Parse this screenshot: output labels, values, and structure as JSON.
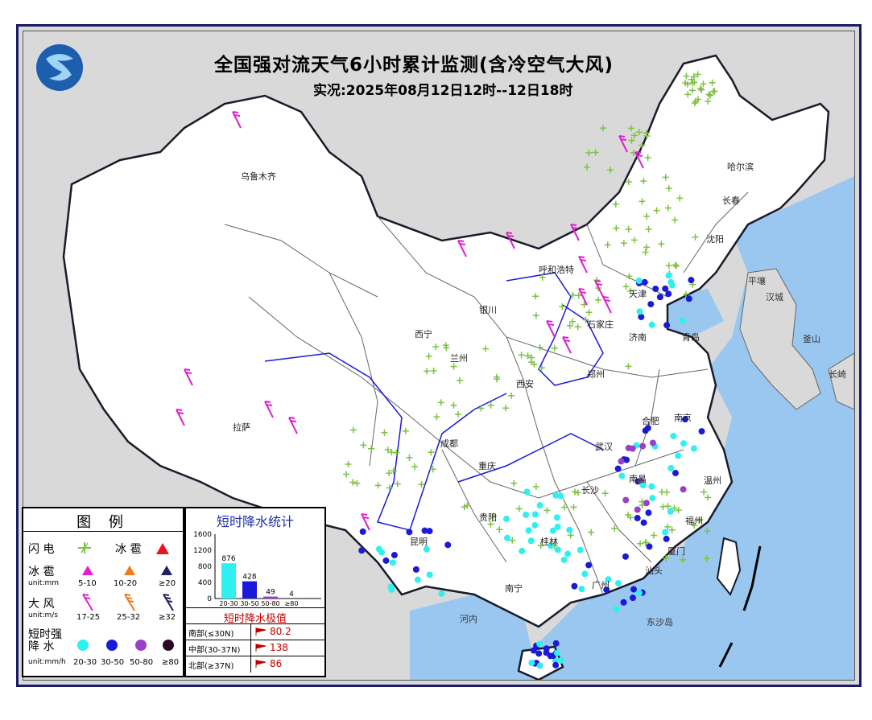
{
  "header": {
    "title": "全国强对流天气6小时累计监测(含冷空气大风)",
    "subtitle": "实况:2025年08月12日12时--12日18时"
  },
  "map_labels": {
    "cities": [
      {
        "name": "乌鲁木齐"
      },
      {
        "name": "哈尔滨"
      },
      {
        "name": "长春"
      },
      {
        "name": "沈阳"
      },
      {
        "name": "呼和浩特"
      },
      {
        "name": "天津"
      },
      {
        "name": "银川"
      },
      {
        "name": "西宁"
      },
      {
        "name": "兰州"
      },
      {
        "name": "济南"
      },
      {
        "name": "青岛"
      },
      {
        "name": "郑州"
      },
      {
        "name": "西安"
      },
      {
        "name": "合肥"
      },
      {
        "name": "南京"
      },
      {
        "name": "武汉"
      },
      {
        "name": "成都"
      },
      {
        "name": "重庆"
      },
      {
        "name": "长沙"
      },
      {
        "name": "南昌"
      },
      {
        "name": "温州"
      },
      {
        "name": "福州"
      },
      {
        "name": "厦门"
      },
      {
        "name": "拉萨"
      },
      {
        "name": "贵阳"
      },
      {
        "name": "昆明"
      },
      {
        "name": "桂林"
      },
      {
        "name": "南宁"
      },
      {
        "name": "广州"
      },
      {
        "name": "汕头"
      },
      {
        "name": "石家庄"
      }
    ],
    "foreign": [
      {
        "name": "平壤"
      },
      {
        "name": "汉城"
      },
      {
        "name": "釜山"
      },
      {
        "name": "长崎"
      },
      {
        "name": "河内"
      },
      {
        "name": "东沙岛"
      }
    ]
  },
  "legend": {
    "title": "图 例",
    "rows": [
      {
        "name": "闪 电",
        "unit": ""
      },
      {
        "name": "冰 雹",
        "unit": "unit:mm"
      },
      {
        "name": "大 风",
        "unit": "unit:m/s"
      },
      {
        "name": "短时强降 水",
        "unit": "unit:mm/h"
      }
    ],
    "lightning_symbol_label": "",
    "hail_label": "冰 雹",
    "hail_bins": [
      "5-10",
      "10-20",
      "≥20"
    ],
    "wind_bins": [
      "17-25",
      "25-32",
      "≥32"
    ],
    "rain_bins": [
      "20-30",
      "30-50",
      "50-80",
      "≥80"
    ],
    "colors": {
      "lightning": "#7cc242",
      "hail_triangle": "#e8141c",
      "hail_5_10": "#e020d0",
      "hail_10_20": "#f07a1c",
      "hail_20": "#232060",
      "wind_17_25": "#e020d0",
      "wind_25_32": "#f07a1c",
      "wind_32": "#232060",
      "rain_20_30": "#2ef0f0",
      "rain_30_50": "#1a1ad8",
      "rain_50_80": "#9b3ec8",
      "rain_80": "#2a0a22"
    }
  },
  "stats": {
    "title": "短时降水统计",
    "chart_data": {
      "type": "bar",
      "categories": [
        "20-30",
        "30-50",
        "50-80",
        "≥80"
      ],
      "values": [
        876,
        428,
        49,
        4
      ],
      "value_labels": [
        "876",
        "428",
        "49",
        "4"
      ],
      "ylim": [
        0,
        1600
      ],
      "yticks": [
        "0",
        "400",
        "800",
        "1200",
        "1600"
      ],
      "colors": [
        "#2ef0f0",
        "#1a1ad8",
        "#9b3ec8",
        "#2a0a22"
      ]
    },
    "extreme_title": "短时降水极值",
    "extremes": [
      {
        "region": "南部(≤30N)",
        "value": "80.2"
      },
      {
        "region": "中部(30-37N)",
        "value": "138"
      },
      {
        "region": "北部(≥37N)",
        "value": "86"
      }
    ]
  }
}
